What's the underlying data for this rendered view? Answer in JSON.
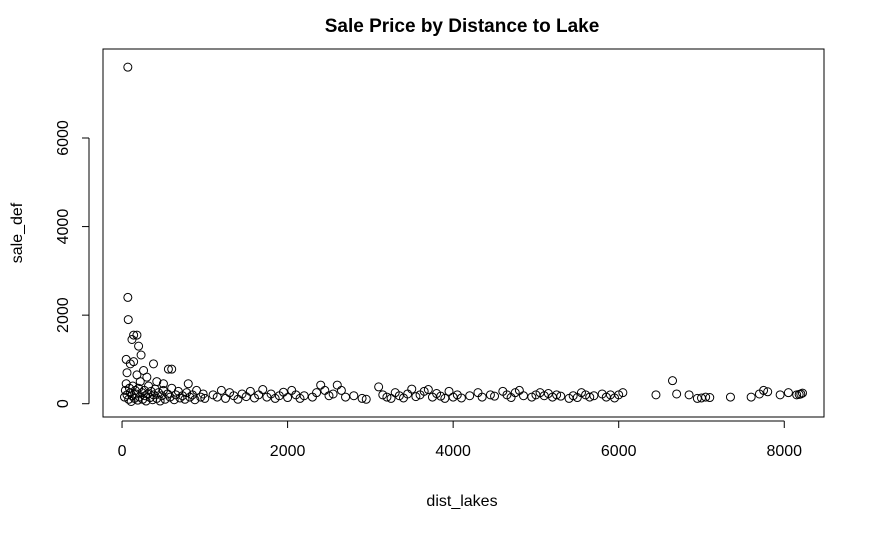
{
  "chart_data": {
    "type": "scatter",
    "title": "Sale Price by Distance to Lake",
    "x_label": "dist_lakes",
    "y_label": "sale_def",
    "x": [
      70,
      70,
      75,
      140,
      180,
      120,
      200,
      230,
      50,
      140,
      100,
      260,
      560,
      600,
      380,
      60,
      180,
      300,
      420,
      500,
      800,
      30,
      40,
      50,
      60,
      80,
      90,
      100,
      110,
      120,
      130,
      150,
      160,
      170,
      190,
      200,
      210,
      220,
      240,
      250,
      270,
      280,
      290,
      310,
      320,
      340,
      350,
      370,
      380,
      400,
      420,
      440,
      460,
      480,
      500,
      520,
      550,
      580,
      600,
      630,
      650,
      680,
      700,
      730,
      760,
      780,
      820,
      850,
      880,
      900,
      950,
      980,
      1000,
      1100,
      1150,
      1200,
      1250,
      1300,
      1350,
      1400,
      1450,
      1500,
      1550,
      1600,
      1650,
      1700,
      1750,
      1800,
      1850,
      1900,
      1950,
      2000,
      2050,
      2100,
      2150,
      2200,
      2300,
      2350,
      2400,
      2450,
      2500,
      2550,
      2600,
      2650,
      2700,
      2800,
      2900,
      2950,
      3100,
      3150,
      3200,
      3250,
      3300,
      3350,
      3400,
      3450,
      3500,
      3550,
      3600,
      3650,
      3700,
      3750,
      3800,
      3850,
      3900,
      3950,
      4000,
      4050,
      4100,
      4200,
      4300,
      4350,
      4450,
      4500,
      4600,
      4650,
      4700,
      4750,
      4800,
      4850,
      4950,
      5000,
      5050,
      5100,
      5150,
      5200,
      5250,
      5300,
      5400,
      5450,
      5500,
      5550,
      5600,
      5650,
      5700,
      5800,
      5850,
      5900,
      5950,
      6000,
      6050,
      6450,
      6650,
      6700,
      6850,
      6950,
      7000,
      7050,
      7100,
      7350,
      7600,
      7700,
      7750,
      7800,
      7950,
      8050,
      8150,
      8200,
      8220,
      8180
    ],
    "values": [
      7600,
      2400,
      1900,
      1550,
      1550,
      1450,
      1300,
      1100,
      1000,
      950,
      900,
      750,
      780,
      780,
      900,
      700,
      650,
      600,
      500,
      450,
      450,
      150,
      300,
      450,
      200,
      100,
      350,
      250,
      50,
      180,
      400,
      120,
      300,
      220,
      80,
      350,
      150,
      500,
      250,
      100,
      300,
      180,
      60,
      220,
      400,
      140,
      280,
      90,
      200,
      330,
      120,
      250,
      60,
      180,
      300,
      100,
      220,
      150,
      350,
      90,
      200,
      280,
      130,
      180,
      100,
      250,
      150,
      200,
      90,
      300,
      150,
      220,
      120,
      200,
      150,
      300,
      120,
      250,
      180,
      100,
      220,
      160,
      280,
      130,
      200,
      320,
      150,
      220,
      120,
      180,
      260,
      140,
      300,
      200,
      120,
      180,
      150,
      250,
      420,
      300,
      180,
      220,
      420,
      300,
      150,
      180,
      120,
      100,
      380,
      200,
      150,
      120,
      250,
      180,
      130,
      220,
      330,
      160,
      200,
      280,
      320,
      150,
      230,
      170,
      120,
      280,
      150,
      200,
      130,
      180,
      250,
      150,
      200,
      170,
      280,
      200,
      140,
      250,
      300,
      180,
      150,
      200,
      250,
      180,
      230,
      150,
      200,
      170,
      120,
      180,
      140,
      250,
      200,
      150,
      180,
      220,
      150,
      200,
      130,
      200,
      250,
      200,
      520,
      220,
      200,
      120,
      130,
      150,
      140,
      150,
      150,
      220,
      300,
      270,
      200,
      250,
      200,
      220,
      240,
      210
    ],
    "color": "#000000",
    "xlim": [
      -230,
      8480
    ],
    "ylim": [
      -300,
      8010
    ],
    "xticks": [
      0,
      2000,
      4000,
      6000,
      8000
    ],
    "yticks": [
      0,
      2000,
      4000,
      6000
    ]
  }
}
